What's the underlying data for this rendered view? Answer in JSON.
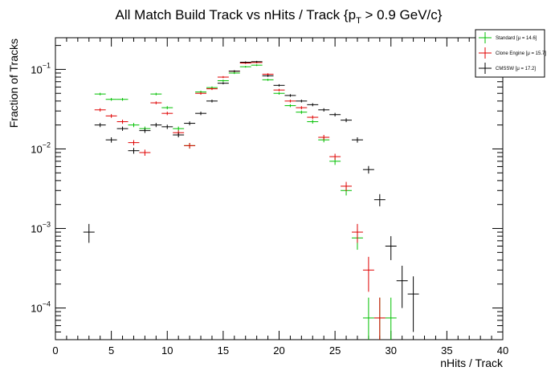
{
  "chart_data": {
    "type": "scatter",
    "title": "All Match Build Track vs nHits / Track",
    "title_cut": {
      "prefix": "{p",
      "sub": "T",
      "suffix": " > 0.9 GeV/c}"
    },
    "xlabel": "nHits / Track",
    "ylabel": "Fraction of Tracks",
    "xlim": [
      0,
      40
    ],
    "ylim": [
      4e-05,
      0.25
    ],
    "yscale": "log",
    "x_ticks": [
      0,
      5,
      10,
      15,
      20,
      25,
      30,
      35,
      40
    ],
    "x_tick_labels": [
      "0",
      "5",
      "10",
      "15",
      "20",
      "25",
      "30",
      "35",
      "40"
    ],
    "y_ticks": [
      0.0001,
      0.001,
      0.01,
      0.1
    ],
    "y_tick_labels": [
      {
        "base": "10",
        "exp": "−4"
      },
      {
        "base": "10",
        "exp": "−3"
      },
      {
        "base": "10",
        "exp": "−2"
      },
      {
        "base": "10",
        "exp": "−1"
      }
    ],
    "legend_position": "top-right",
    "series": [
      {
        "name": "Standard",
        "stat": "[μ = 14.6]",
        "color": "#00c000",
        "points": [
          [
            4,
            0.049,
            0.0018
          ],
          [
            5,
            0.042,
            0.0017
          ],
          [
            6,
            0.042,
            0.0017
          ],
          [
            7,
            0.02,
            0.0012
          ],
          [
            8,
            0.018,
            0.0011
          ],
          [
            9,
            0.049,
            0.0018
          ],
          [
            10,
            0.033,
            0.0015
          ],
          [
            11,
            0.018,
            0.0011
          ],
          [
            12,
            0.011,
            0.0009
          ],
          [
            13,
            0.052,
            0.0019
          ],
          [
            14,
            0.059,
            0.002
          ],
          [
            15,
            0.072,
            0.0022
          ],
          [
            16,
            0.09,
            0.0025
          ],
          [
            17,
            0.108,
            0.0027
          ],
          [
            18,
            0.113,
            0.0028
          ],
          [
            19,
            0.074,
            0.0022
          ],
          [
            20,
            0.05,
            0.0018
          ],
          [
            21,
            0.035,
            0.0015
          ],
          [
            22,
            0.029,
            0.0014
          ],
          [
            23,
            0.022,
            0.0012
          ],
          [
            24,
            0.013,
            0.0009
          ],
          [
            25,
            0.007,
            0.0007
          ],
          [
            26,
            0.003,
            0.0004
          ],
          [
            27,
            0.00076,
            0.00022
          ],
          [
            28,
            7.5e-05,
            6e-05
          ],
          [
            29,
            7.5e-05,
            6e-05
          ],
          [
            30,
            7.5e-05,
            6e-05
          ]
        ]
      },
      {
        "name": "Clone Engine",
        "stat": "[μ = 15.7]",
        "color": "#e00000",
        "points": [
          [
            4,
            0.031,
            0.0015
          ],
          [
            5,
            0.026,
            0.0014
          ],
          [
            6,
            0.022,
            0.0013
          ],
          [
            7,
            0.012,
            0.0009
          ],
          [
            8,
            0.009,
            0.0008
          ],
          [
            9,
            0.038,
            0.0016
          ],
          [
            10,
            0.028,
            0.0014
          ],
          [
            11,
            0.016,
            0.0011
          ],
          [
            12,
            0.011,
            0.0009
          ],
          [
            13,
            0.05,
            0.0019
          ],
          [
            14,
            0.057,
            0.002
          ],
          [
            15,
            0.08,
            0.0023
          ],
          [
            16,
            0.095,
            0.0025
          ],
          [
            17,
            0.12,
            0.0028
          ],
          [
            18,
            0.122,
            0.0029
          ],
          [
            19,
            0.087,
            0.0024
          ],
          [
            20,
            0.055,
            0.0019
          ],
          [
            21,
            0.04,
            0.0016
          ],
          [
            22,
            0.033,
            0.0015
          ],
          [
            23,
            0.025,
            0.0013
          ],
          [
            24,
            0.014,
            0.001
          ],
          [
            25,
            0.008,
            0.0007
          ],
          [
            26,
            0.0034,
            0.00045
          ],
          [
            27,
            0.0009,
            0.00024
          ],
          [
            28,
            0.0003,
            0.00014
          ],
          [
            29,
            7.5e-05,
            6e-05
          ]
        ]
      },
      {
        "name": "CMSSW",
        "stat": "[μ = 17.2]",
        "color": "#000000",
        "points": [
          [
            3,
            0.0009,
            0.00024
          ],
          [
            4,
            0.02,
            0.0012
          ],
          [
            5,
            0.013,
            0.001
          ],
          [
            6,
            0.018,
            0.0011
          ],
          [
            7,
            0.0095,
            0.0008
          ],
          [
            8,
            0.017,
            0.0011
          ],
          [
            9,
            0.02,
            0.0012
          ],
          [
            10,
            0.019,
            0.0012
          ],
          [
            11,
            0.015,
            0.001
          ],
          [
            12,
            0.021,
            0.0012
          ],
          [
            13,
            0.028,
            0.0014
          ],
          [
            14,
            0.04,
            0.0016
          ],
          [
            15,
            0.067,
            0.0021
          ],
          [
            16,
            0.095,
            0.0025
          ],
          [
            17,
            0.123,
            0.0029
          ],
          [
            18,
            0.125,
            0.0029
          ],
          [
            19,
            0.083,
            0.0024
          ],
          [
            20,
            0.063,
            0.0021
          ],
          [
            21,
            0.047,
            0.0018
          ],
          [
            22,
            0.04,
            0.0016
          ],
          [
            23,
            0.036,
            0.0016
          ],
          [
            24,
            0.031,
            0.0015
          ],
          [
            25,
            0.027,
            0.0014
          ],
          [
            26,
            0.023,
            0.0013
          ],
          [
            27,
            0.013,
            0.001
          ],
          [
            28,
            0.0055,
            0.0006
          ],
          [
            29,
            0.0023,
            0.0004
          ],
          [
            30,
            0.0006,
            0.0002
          ],
          [
            31,
            0.00022,
            0.00012
          ],
          [
            32,
            0.00015,
            0.0001
          ]
        ]
      }
    ]
  }
}
